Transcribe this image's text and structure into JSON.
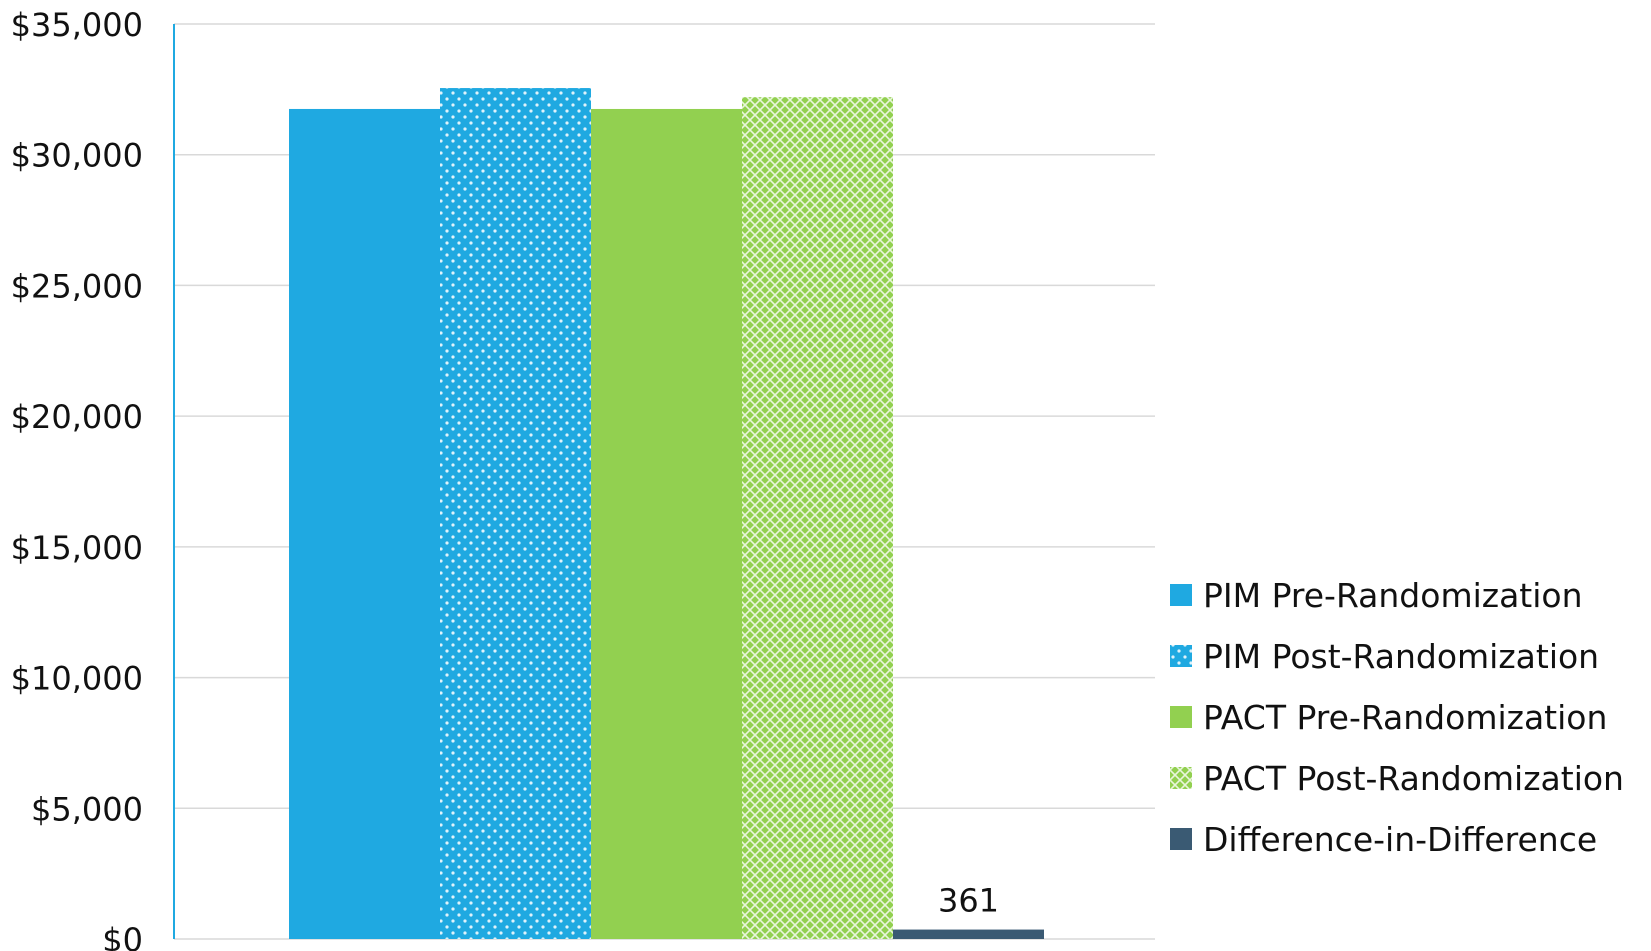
{
  "chart_data": {
    "type": "bar",
    "title": "",
    "xlabel": "",
    "ylabel": "",
    "ylim": [
      0,
      35000
    ],
    "yticks": [
      {
        "value": 0,
        "label": "$0"
      },
      {
        "value": 5000,
        "label": "$5,000"
      },
      {
        "value": 10000,
        "label": "$10,000"
      },
      {
        "value": 15000,
        "label": "$15,000"
      },
      {
        "value": 20000,
        "label": "$20,000"
      },
      {
        "value": 25000,
        "label": "$25,000"
      },
      {
        "value": 30000,
        "label": "$30,000"
      },
      {
        "value": 35000,
        "label": "$35,000"
      }
    ],
    "grid": true,
    "legend_position": "right",
    "series": [
      {
        "name": "PIM Pre-Randomization",
        "value": 31750,
        "color": "#1fa9e1",
        "pattern": "solid"
      },
      {
        "name": "PIM Post-Randomization",
        "value": 32550,
        "color": "#1fa9e1",
        "pattern": "dots"
      },
      {
        "name": "PACT Pre-Randomization",
        "value": 31750,
        "color": "#92d050",
        "pattern": "solid"
      },
      {
        "name": "PACT Post-Randomization",
        "value": 32200,
        "color": "#92d050",
        "pattern": "crosshatch"
      },
      {
        "name": "Difference-in-Difference",
        "value": 361,
        "color": "#3a5a73",
        "pattern": "solid",
        "data_label": "361"
      }
    ]
  }
}
